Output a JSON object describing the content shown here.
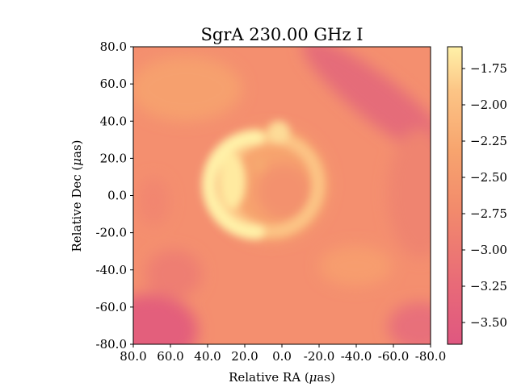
{
  "chart_data": {
    "type": "heatmap",
    "title": "SgrA 230.00 GHz I",
    "xlabel": "Relative RA (μas)",
    "ylabel": "Relative Dec (μas)",
    "xlim": [
      80.0,
      -80.0
    ],
    "ylim": [
      -80.0,
      80.0
    ],
    "x_ticks": [
      80.0,
      60.0,
      40.0,
      20.0,
      0.0,
      -20.0,
      -40.0,
      -60.0,
      -80.0
    ],
    "x_tick_labels": [
      "80.0",
      "60.0",
      "40.0",
      "20.0",
      "0.0",
      "-20.0",
      "-40.0",
      "-60.0",
      "-80.0"
    ],
    "y_ticks": [
      80.0,
      60.0,
      40.0,
      20.0,
      0.0,
      -20.0,
      -40.0,
      -60.0,
      -80.0
    ],
    "y_tick_labels": [
      "80.0",
      "60.0",
      "40.0",
      "20.0",
      "0.0",
      "-20.0",
      "-40.0",
      "-60.0",
      "-80.0"
    ],
    "colorbar": {
      "min": -3.65,
      "max": -1.6,
      "ticks": [
        -1.75,
        -2.0,
        -2.25,
        -2.5,
        -2.75,
        -3.0,
        -3.25,
        -3.5
      ],
      "tick_labels": [
        "−1.75",
        "−2.00",
        "−2.25",
        "−2.50",
        "−2.75",
        "−3.00",
        "−3.25",
        "−3.50"
      ],
      "colormap": "magma-pastel",
      "colors": [
        "#df5780",
        "#e86a78",
        "#f28a6c",
        "#f7a46e",
        "#fcc485",
        "#fff1a8"
      ]
    },
    "features": [
      {
        "name": "ring",
        "center": [
          5,
          3
        ],
        "radius": 27,
        "peak_value": -1.6,
        "brightest_side": "east"
      },
      {
        "name": "background",
        "value": -2.9
      }
    ],
    "grid": false
  }
}
